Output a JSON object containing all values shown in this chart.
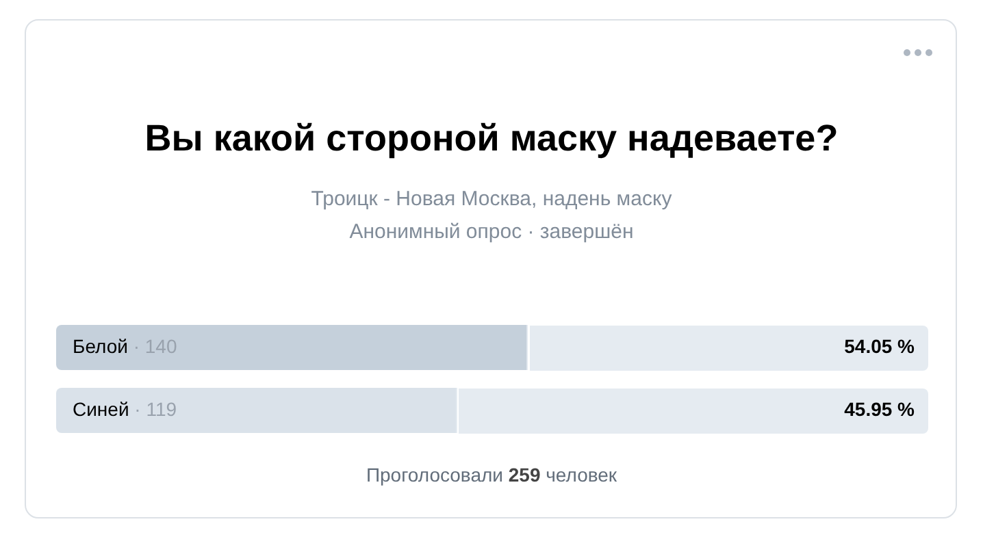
{
  "chart_data": {
    "type": "bar",
    "orientation": "horizontal",
    "title": "Вы какой стороной маску надеваете?",
    "subtitle": "Троицк - Новая Москва, надень маску",
    "categories": [
      "Белой",
      "Синей"
    ],
    "values": [
      54.05,
      45.95
    ],
    "colors": [
      "#c5d0db",
      "#dae2ea"
    ],
    "value_labels": [
      "54.05 %",
      "45.95 %"
    ],
    "xlim": [
      0,
      100
    ],
    "tick_labels": false,
    "legend": false,
    "annotations": [
      "Анонимный опрос · завершён",
      {
        "text": "· 140",
        "y": "Белой"
      },
      {
        "text": "· 119",
        "y": "Синей"
      },
      "Проголосовали 259 человек"
    ]
  }
}
